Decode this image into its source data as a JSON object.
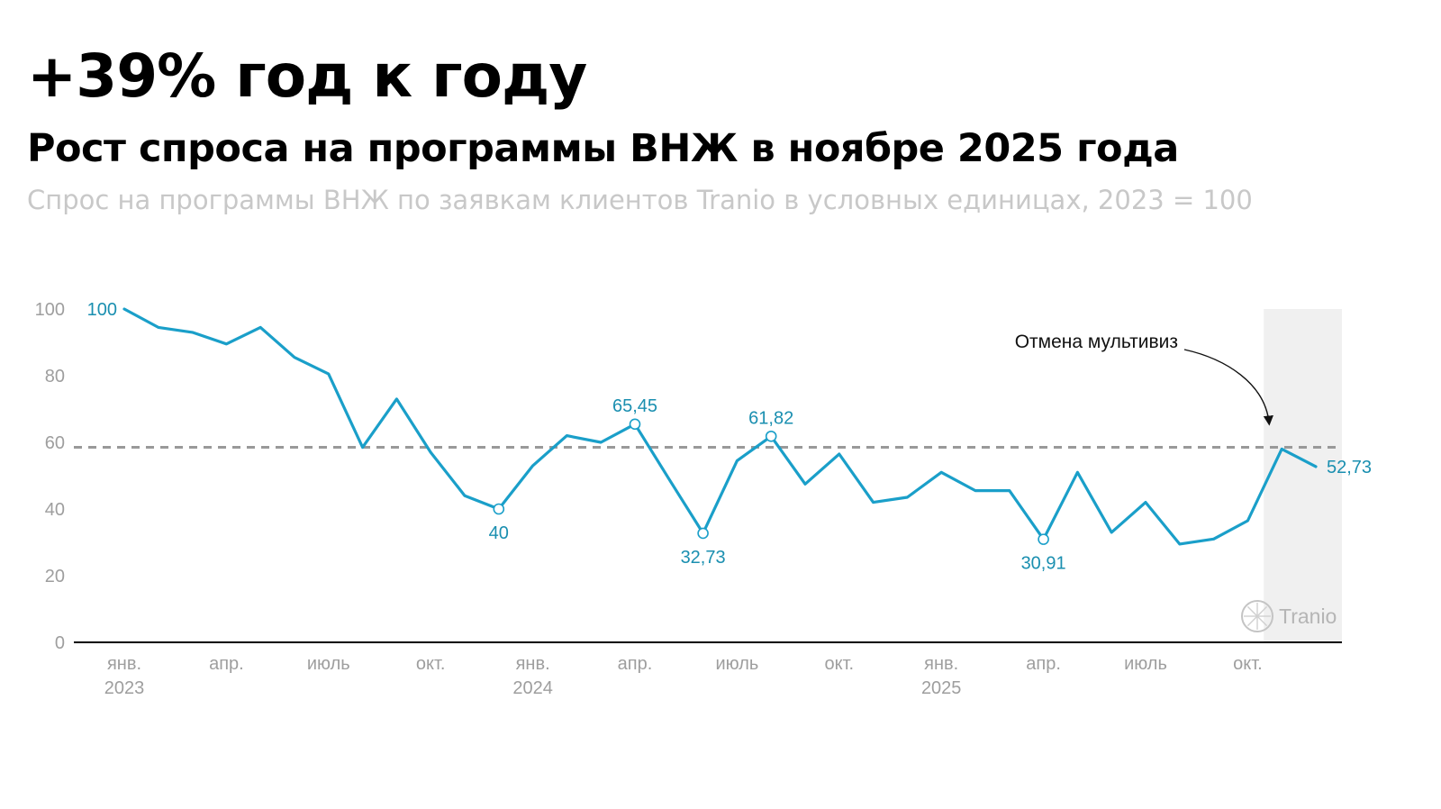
{
  "header": {
    "headline": "+39% год к году",
    "subhead": "Рост спроса на программы ВНЖ в ноябре 2025 года",
    "caption": "Спрос на программы ВНЖ по заявкам клиентов Tranio в условных единицах, 2023 = 100"
  },
  "brand": {
    "name": "Tranio",
    "icon": "tranio-logo-icon"
  },
  "colors": {
    "line": "#1a9fc9",
    "label": "#1a8fb0",
    "reference": "#999999",
    "highlight": "#f0f0f0",
    "axis": "#000000",
    "tick": "#9e9e9e"
  },
  "chart_data": {
    "type": "line",
    "title": "",
    "xlabel": "",
    "ylabel": "",
    "x": [
      "2023-01",
      "2023-02",
      "2023-03",
      "2023-04",
      "2023-05",
      "2023-06",
      "2023-07",
      "2023-08",
      "2023-09",
      "2023-10",
      "2023-11",
      "2023-12",
      "2024-01",
      "2024-02",
      "2024-03",
      "2024-04",
      "2024-05",
      "2024-06",
      "2024-07",
      "2024-08",
      "2024-09",
      "2024-10",
      "2024-11",
      "2024-12",
      "2025-01",
      "2025-02",
      "2025-03",
      "2025-04",
      "2025-05",
      "2025-06",
      "2025-07",
      "2025-08",
      "2025-09",
      "2025-10",
      "2025-11",
      "2025-12"
    ],
    "series": [
      {
        "values": [
          100,
          94.5,
          93,
          89.5,
          94.5,
          85.5,
          80.5,
          58.5,
          73,
          57,
          44,
          40,
          53,
          62,
          60,
          65.45,
          49,
          32.73,
          54.5,
          61.82,
          47.5,
          56.5,
          42,
          43.5,
          51,
          45.5,
          45.5,
          30.91,
          51,
          33,
          42,
          29.5,
          31,
          36.5,
          58,
          52.73
        ]
      }
    ],
    "ylim": [
      0,
      100
    ],
    "yticks": [
      "0",
      "20",
      "40",
      "60",
      "80",
      "100"
    ],
    "xticks": [
      {
        "x": "2023-01",
        "label": "янв.",
        "year": "2023"
      },
      {
        "x": "2023-04",
        "label": "апр."
      },
      {
        "x": "2023-07",
        "label": "июль"
      },
      {
        "x": "2023-10",
        "label": "окт."
      },
      {
        "x": "2024-01",
        "label": "янв.",
        "year": "2024"
      },
      {
        "x": "2024-04",
        "label": "апр."
      },
      {
        "x": "2024-07",
        "label": "июль"
      },
      {
        "x": "2024-10",
        "label": "окт."
      },
      {
        "x": "2025-01",
        "label": "янв.",
        "year": "2025"
      },
      {
        "x": "2025-04",
        "label": "апр."
      },
      {
        "x": "2025-07",
        "label": "июль"
      },
      {
        "x": "2025-10",
        "label": "окт."
      }
    ],
    "data_labels": [
      {
        "x": "2023-01",
        "text": "100",
        "position": "left",
        "marker": false
      },
      {
        "x": "2023-12",
        "text": "40",
        "position": "below",
        "marker": true
      },
      {
        "x": "2024-04",
        "text": "65,45",
        "position": "above",
        "marker": true
      },
      {
        "x": "2024-06",
        "text": "32,73",
        "position": "below",
        "marker": true
      },
      {
        "x": "2024-08",
        "text": "61,82",
        "position": "above",
        "marker": true
      },
      {
        "x": "2025-04",
        "text": "30,91",
        "position": "below",
        "marker": true
      },
      {
        "x": "2025-12",
        "text": "52,73",
        "position": "right",
        "marker": false
      }
    ],
    "reference_line": {
      "y": 58.5,
      "style": "dashed"
    },
    "highlight_span": {
      "from": "2025-11",
      "to": "2025-12"
    },
    "annotations": [
      {
        "text": "Отмена мультивиз",
        "points_to": "2025-11"
      }
    ],
    "grid": false,
    "legend": "none"
  }
}
